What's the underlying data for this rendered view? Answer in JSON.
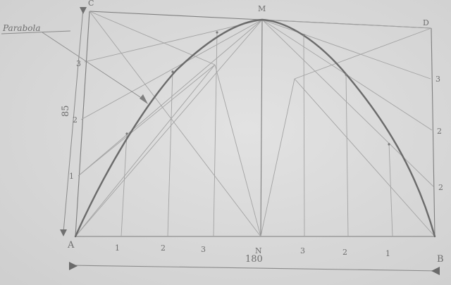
{
  "labels": {
    "A": "A",
    "B": "B",
    "C": "C",
    "D": "D",
    "M": "M",
    "N": "N",
    "bottom_ticks": [
      "1",
      "2",
      "3",
      "3",
      "2",
      "1"
    ],
    "left_ticks": [
      "1",
      "2",
      "3"
    ],
    "right_ticks": [
      "3",
      "2",
      "2"
    ],
    "height_dim": "85",
    "span_dim": "180",
    "callout": "Parabola"
  }
}
